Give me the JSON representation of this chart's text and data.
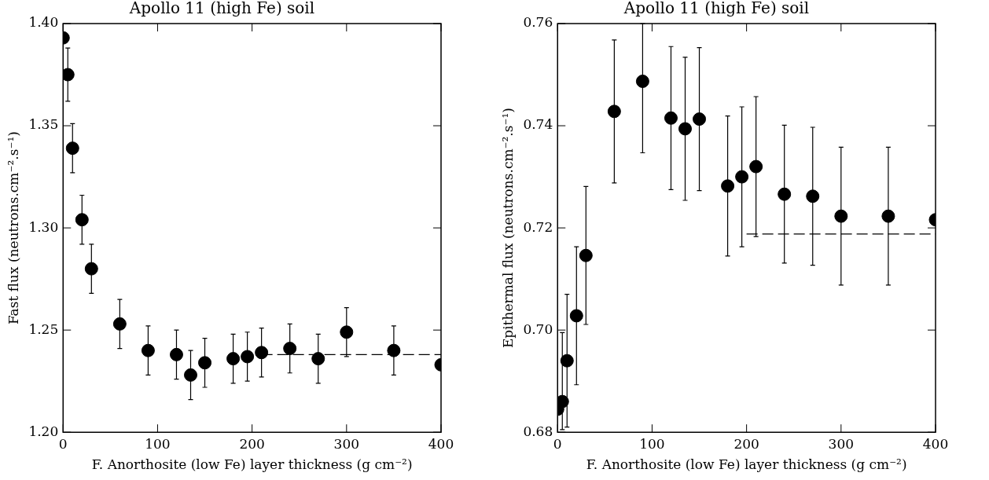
{
  "chart_data": [
    {
      "type": "scatter",
      "title": "Apollo 11 (high Fe) soil",
      "xlabel": "F. Anorthosite (low Fe) layer thickness (g cm⁻²)",
      "ylabel": "Fast flux (neutrons.cm⁻².s⁻¹)",
      "xlim": [
        0,
        400
      ],
      "xticks": [
        0,
        100,
        200,
        300,
        400
      ],
      "ylim": [
        1.2,
        1.4
      ],
      "yticks": [
        {
          "value": 1.2,
          "label": "1.20"
        },
        {
          "value": 1.25,
          "label": "1.25"
        },
        {
          "value": 1.3,
          "label": "1.30"
        },
        {
          "value": 1.35,
          "label": "1.35"
        },
        {
          "value": 1.4,
          "label": "1.40"
        }
      ],
      "grid": false,
      "legend": false,
      "marker": "circle",
      "series": [
        {
          "type": "scatter",
          "color": "#000000",
          "x": [
            0,
            5,
            10,
            20,
            30,
            60,
            90,
            120,
            135,
            150,
            180,
            195,
            210,
            240,
            270,
            300,
            350,
            400
          ],
          "values": [
            1.393,
            1.375,
            1.339,
            1.304,
            1.28,
            1.253,
            1.24,
            1.238,
            1.228,
            1.234,
            1.236,
            1.237,
            1.239,
            1.241,
            1.236,
            1.249,
            1.24,
            1.233
          ],
          "errors": [
            null,
            0.013,
            0.012,
            0.012,
            0.012,
            0.012,
            0.012,
            0.012,
            0.012,
            0.012,
            0.012,
            0.012,
            0.012,
            0.012,
            0.012,
            0.012,
            0.012,
            null
          ]
        },
        {
          "type": "line",
          "color": "#000000",
          "line_style": "dashed",
          "marker": "none",
          "x": [
            210,
            400
          ],
          "values": [
            1.238,
            1.238
          ]
        }
      ]
    },
    {
      "type": "scatter",
      "title": "Apollo 11 (high Fe) soil",
      "xlabel": "F. Anorthosite (low Fe) layer thickness (g cm⁻²)",
      "ylabel": "Epithermal flux (neutrons.cm⁻².s⁻¹)",
      "xlim": [
        0,
        400
      ],
      "xticks": [
        0,
        100,
        200,
        300,
        400
      ],
      "ylim": [
        0.68,
        0.76
      ],
      "yticks": [
        {
          "value": 0.68,
          "label": "0.68"
        },
        {
          "value": 0.7,
          "label": "0.70"
        },
        {
          "value": 0.72,
          "label": "0.72"
        },
        {
          "value": 0.74,
          "label": "0.74"
        },
        {
          "value": 0.76,
          "label": "0.76"
        }
      ],
      "grid": false,
      "legend": false,
      "marker": "circle",
      "series": [
        {
          "type": "scatter",
          "color": "#000000",
          "x": [
            0,
            5,
            10,
            20,
            30,
            60,
            90,
            120,
            135,
            150,
            180,
            195,
            210,
            240,
            270,
            300,
            350,
            400
          ],
          "values": [
            0.6845,
            0.686,
            0.694,
            0.7028,
            0.7146,
            0.7428,
            0.7487,
            0.7415,
            0.7394,
            0.7413,
            0.7282,
            0.73,
            0.732,
            0.7266,
            0.7262,
            0.7223,
            0.7223,
            0.7216
          ],
          "errors": [
            null,
            [
              0.6805,
              0.6995
            ],
            0.013,
            0.0135,
            0.0135,
            0.014,
            [
              0.7347,
              0.76
            ],
            0.014,
            0.014,
            0.014,
            0.0137,
            0.0137,
            0.0137,
            0.0135,
            0.0135,
            0.0135,
            0.0135,
            null
          ]
        },
        {
          "type": "line",
          "color": "#000000",
          "line_style": "dashed",
          "marker": "none",
          "x": [
            200,
            400
          ],
          "values": [
            0.7188,
            0.7188
          ]
        }
      ]
    }
  ]
}
